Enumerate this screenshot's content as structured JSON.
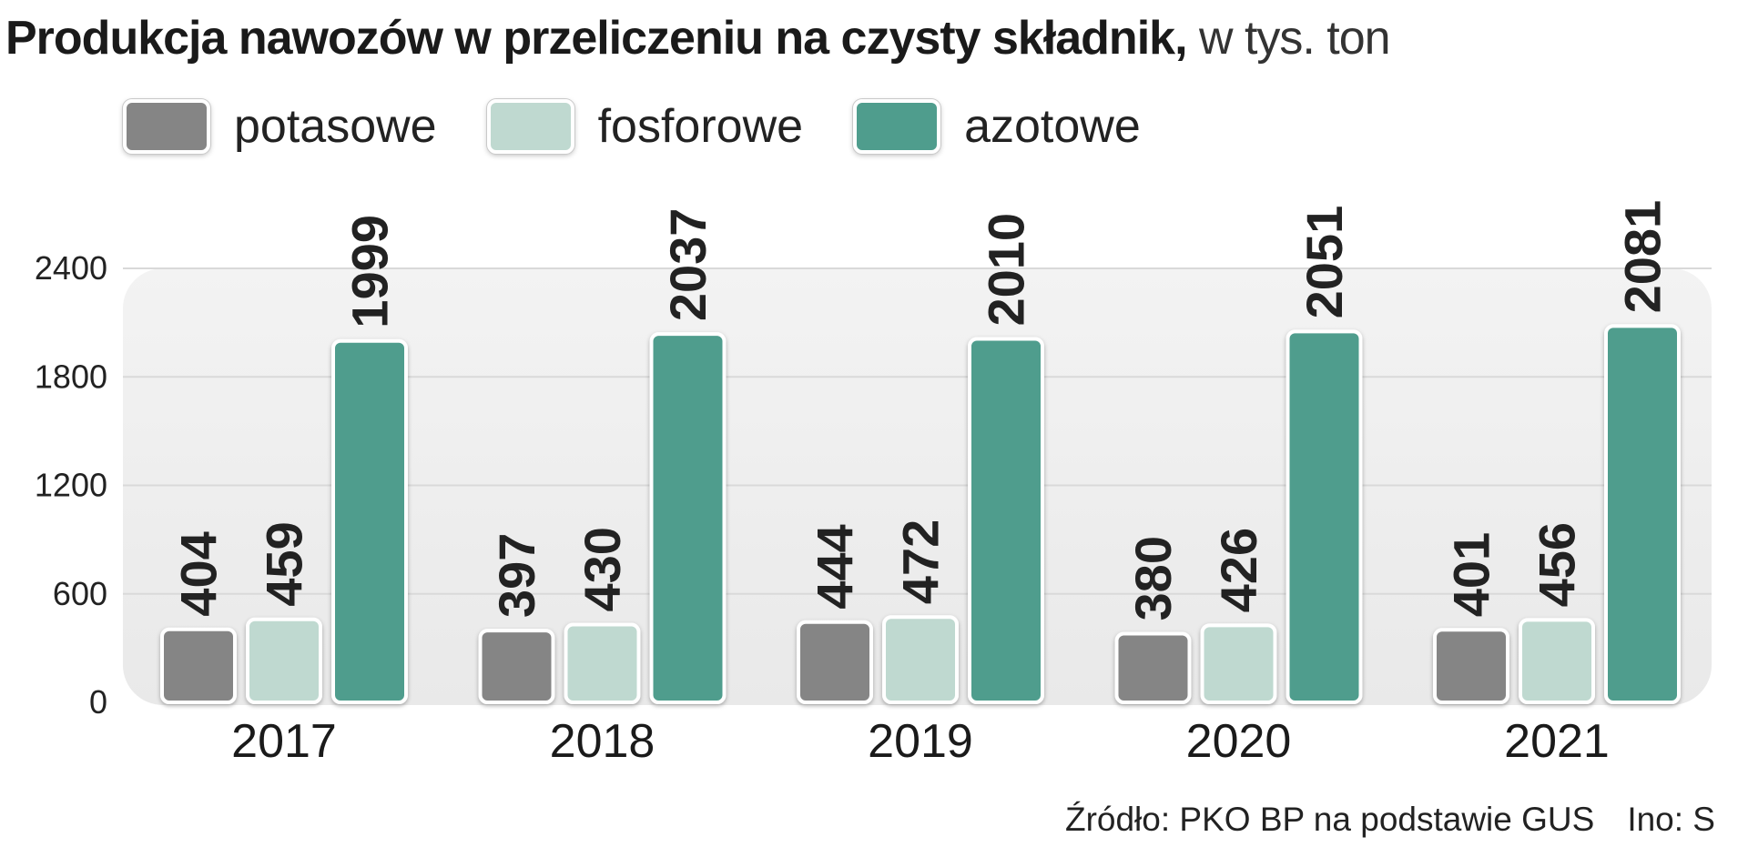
{
  "title": {
    "main": "Produkcja nawozów w przeliczeniu na czysty składnik,",
    "unit": "w tys. ton"
  },
  "legend": [
    {
      "label": "potasowe",
      "color": "#858585"
    },
    {
      "label": "fosforowe",
      "color": "#bfd9d0"
    },
    {
      "label": "azotowe",
      "color": "#4f9d8d"
    }
  ],
  "source": {
    "text": "Źródło: PKO BP na podstawie GUS",
    "author": "Ino: S"
  },
  "chart_data": {
    "type": "bar",
    "categories": [
      "2017",
      "2018",
      "2019",
      "2020",
      "2021"
    ],
    "series": [
      {
        "name": "potasowe",
        "color": "#858585",
        "values": [
          404,
          397,
          444,
          380,
          401
        ]
      },
      {
        "name": "fosforowe",
        "color": "#bfd9d0",
        "values": [
          459,
          430,
          472,
          426,
          456
        ]
      },
      {
        "name": "azotowe",
        "color": "#4f9d8d",
        "values": [
          1999,
          2037,
          2010,
          2051,
          2081
        ]
      }
    ],
    "yticks": [
      0,
      600,
      1200,
      1800,
      2400
    ],
    "ylim": [
      0,
      2400
    ],
    "title": "Produkcja nawozów w przeliczeniu na czysty składnik, w tys. ton",
    "legend_position": "top-left",
    "grid": true
  }
}
